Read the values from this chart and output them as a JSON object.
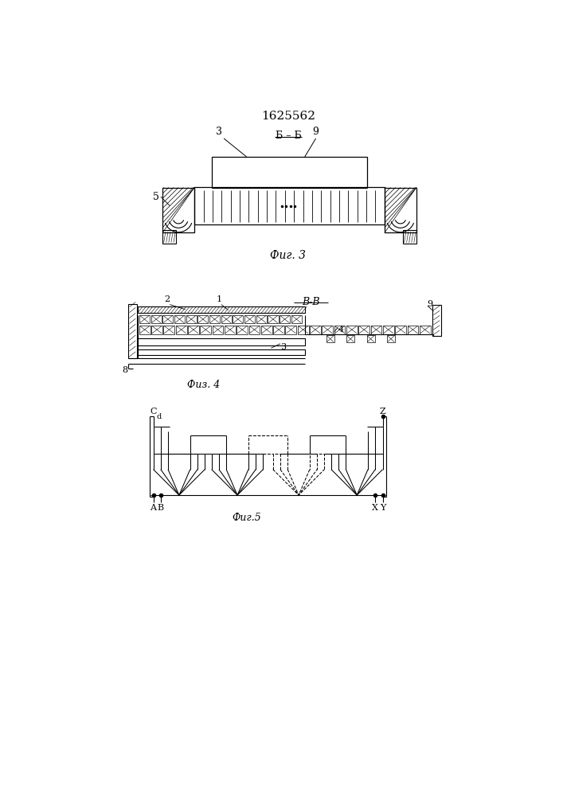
{
  "title": "1625562",
  "fig3_label": "Фиг. 3",
  "fig4_label": "Физ. 4",
  "fig5_label": "Фиг.5",
  "section_bb": "Б – Б",
  "section_vv": "В-В",
  "bg_color": "#ffffff",
  "line_color": "#000000"
}
